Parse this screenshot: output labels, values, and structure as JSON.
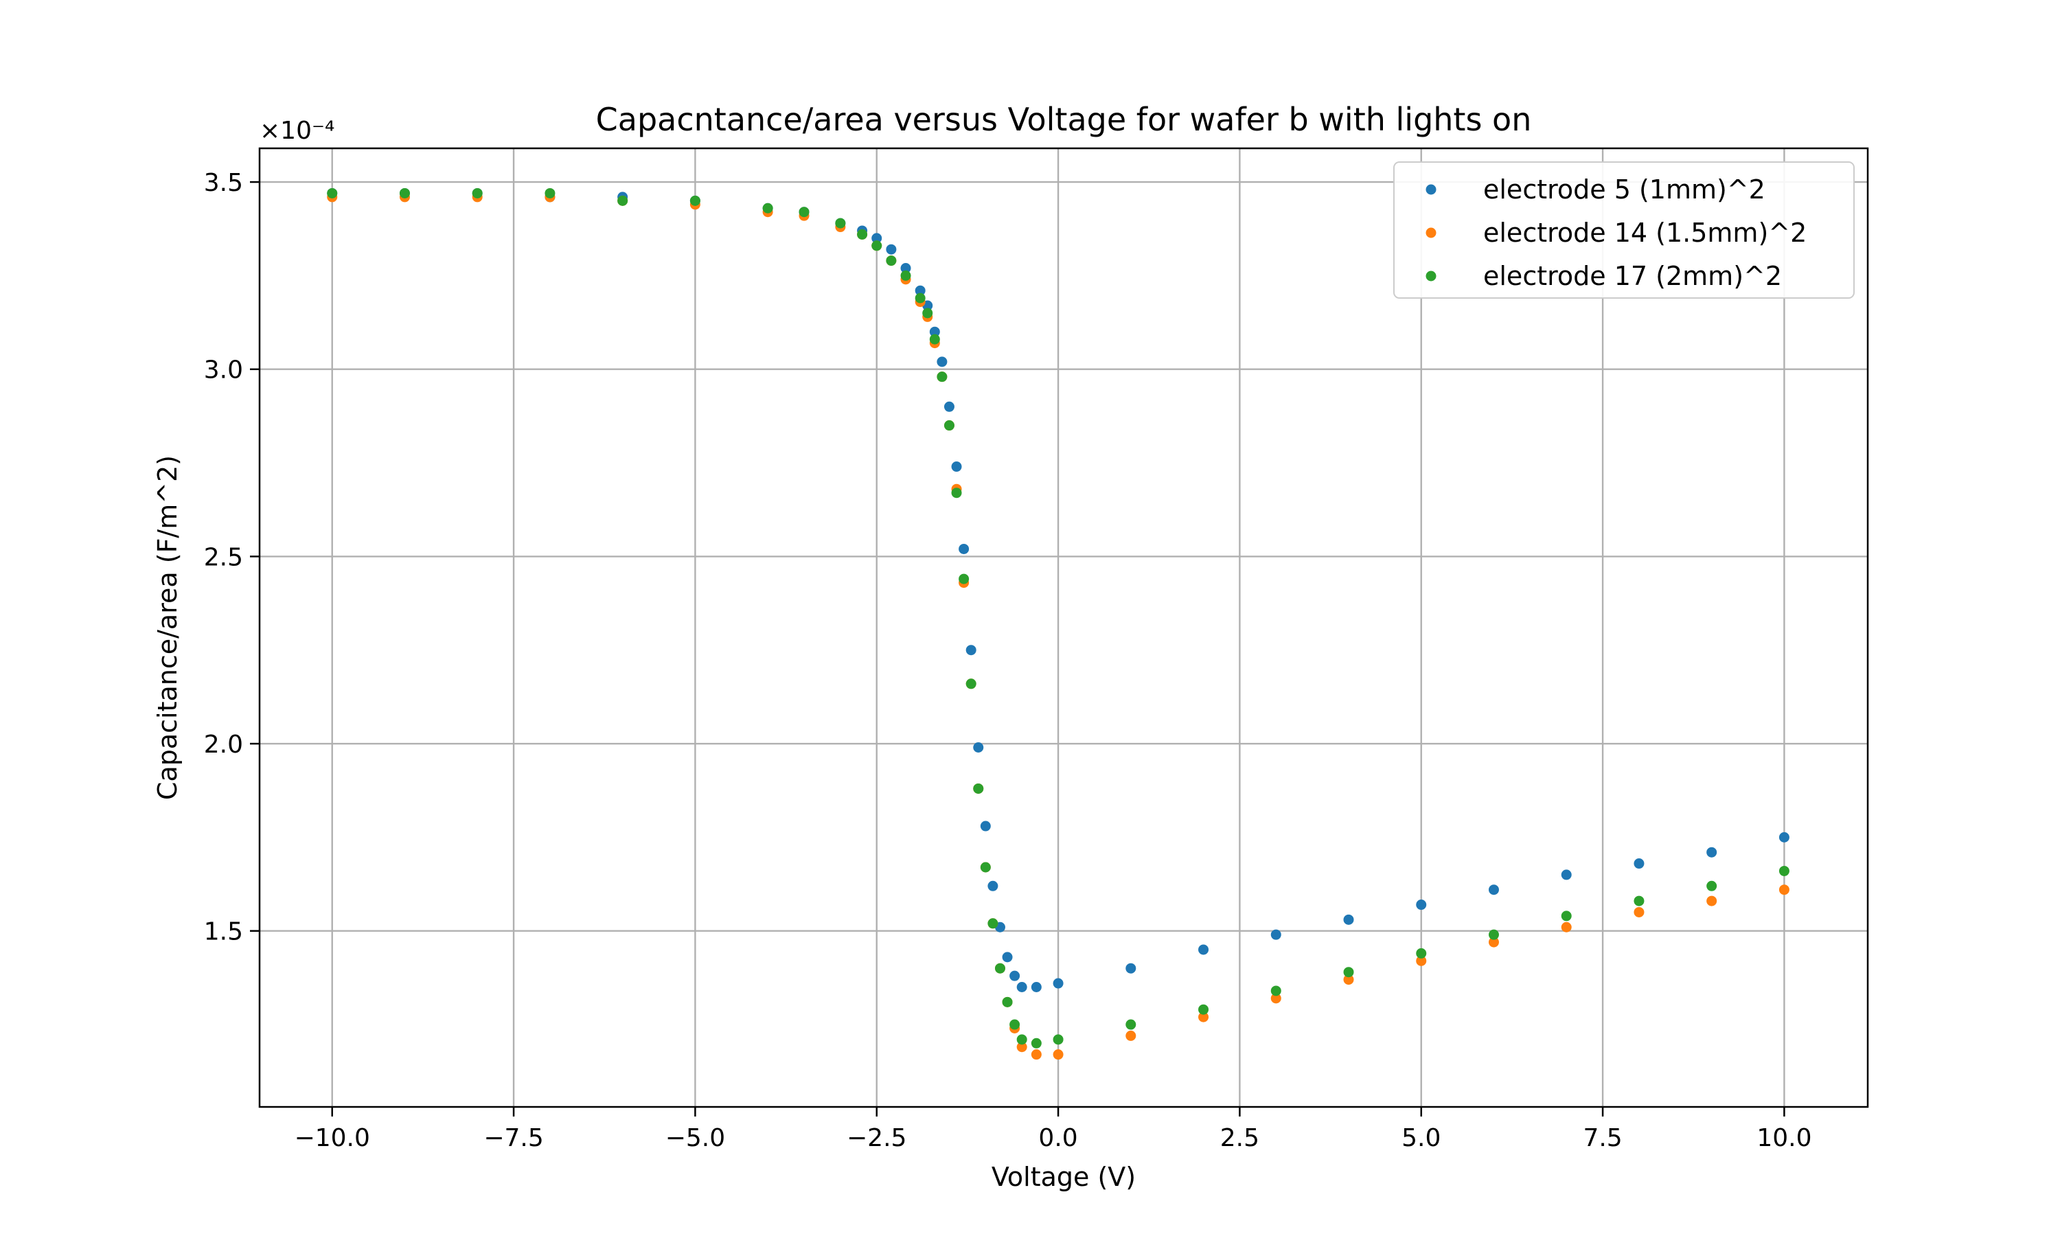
{
  "chart_data": {
    "type": "scatter",
    "title": "Capacntance/area versus Voltage for wafer b with lights on",
    "xlabel": "Voltage (V)",
    "ylabel": "Capacitance/area (F/m^2)",
    "offset_label": "×10⁻⁴",
    "xlim": [
      -11.0,
      11.15
    ],
    "ylim": [
      1.03,
      3.59
    ],
    "x_ticks": [
      -10.0,
      -7.5,
      -5.0,
      -2.5,
      0.0,
      2.5,
      5.0,
      7.5,
      10.0
    ],
    "x_tick_labels": [
      "−10.0",
      "−7.5",
      "−5.0",
      "−2.5",
      "0.0",
      "2.5",
      "5.0",
      "7.5",
      "10.0"
    ],
    "y_ticks": [
      1.5,
      2.0,
      2.5,
      3.0,
      3.5
    ],
    "y_tick_labels": [
      "1.5",
      "2.0",
      "2.5",
      "3.0",
      "3.5"
    ],
    "grid": true,
    "legend_position": "top-right",
    "series": [
      {
        "name": "electrode 5 (1mm)^2",
        "color": "#1f77b4",
        "x": [
          -10.0,
          -9.0,
          -8.0,
          -7.0,
          -6.0,
          -5.0,
          -4.0,
          -3.5,
          -3.0,
          -2.7,
          -2.5,
          -2.3,
          -2.1,
          -1.9,
          -1.8,
          -1.7,
          -1.6,
          -1.5,
          -1.4,
          -1.3,
          -1.2,
          -1.1,
          -1.0,
          -0.9,
          -0.8,
          -0.7,
          -0.6,
          -0.5,
          -0.3,
          0.0,
          1.0,
          2.0,
          3.0,
          4.0,
          5.0,
          6.0,
          7.0,
          8.0,
          9.0,
          10.0
        ],
        "y": [
          3.47,
          3.47,
          3.47,
          3.46,
          3.46,
          3.45,
          3.43,
          3.42,
          3.39,
          3.37,
          3.35,
          3.32,
          3.27,
          3.21,
          3.17,
          3.1,
          3.02,
          2.9,
          2.74,
          2.52,
          2.25,
          1.99,
          1.78,
          1.62,
          1.51,
          1.43,
          1.38,
          1.35,
          1.35,
          1.36,
          1.4,
          1.45,
          1.49,
          1.53,
          1.57,
          1.61,
          1.65,
          1.68,
          1.71,
          1.75
        ]
      },
      {
        "name": "electrode 14 (1.5mm)^2",
        "color": "#ff7f0e",
        "x": [
          -10.0,
          -9.0,
          -8.0,
          -7.0,
          -6.0,
          -5.0,
          -4.0,
          -3.5,
          -3.0,
          -2.7,
          -2.5,
          -2.3,
          -2.1,
          -1.9,
          -1.8,
          -1.7,
          -1.6,
          -1.5,
          -1.4,
          -1.3,
          -1.2,
          -1.1,
          -1.0,
          -0.9,
          -0.8,
          -0.7,
          -0.6,
          -0.5,
          -0.3,
          0.0,
          1.0,
          2.0,
          3.0,
          4.0,
          5.0,
          6.0,
          7.0,
          8.0,
          9.0,
          10.0
        ],
        "y": [
          3.46,
          3.46,
          3.46,
          3.46,
          3.45,
          3.44,
          3.42,
          3.41,
          3.38,
          3.36,
          3.33,
          3.29,
          3.24,
          3.18,
          3.14,
          3.07,
          2.98,
          2.85,
          2.68,
          2.43,
          2.16,
          1.88,
          1.67,
          1.52,
          1.4,
          1.31,
          1.24,
          1.19,
          1.17,
          1.17,
          1.22,
          1.27,
          1.32,
          1.37,
          1.42,
          1.47,
          1.51,
          1.55,
          1.58,
          1.61
        ]
      },
      {
        "name": "electrode 17 (2mm)^2",
        "color": "#2ca02c",
        "x": [
          -10.0,
          -9.0,
          -8.0,
          -7.0,
          -6.0,
          -5.0,
          -4.0,
          -3.5,
          -3.0,
          -2.7,
          -2.5,
          -2.3,
          -2.1,
          -1.9,
          -1.8,
          -1.7,
          -1.6,
          -1.5,
          -1.4,
          -1.3,
          -1.2,
          -1.1,
          -1.0,
          -0.9,
          -0.8,
          -0.7,
          -0.6,
          -0.5,
          -0.3,
          0.0,
          1.0,
          2.0,
          3.0,
          4.0,
          5.0,
          6.0,
          7.0,
          8.0,
          9.0,
          10.0
        ],
        "y": [
          3.47,
          3.47,
          3.47,
          3.47,
          3.45,
          3.45,
          3.43,
          3.42,
          3.39,
          3.36,
          3.33,
          3.29,
          3.25,
          3.19,
          3.15,
          3.08,
          2.98,
          2.85,
          2.67,
          2.44,
          2.16,
          1.88,
          1.67,
          1.52,
          1.4,
          1.31,
          1.25,
          1.21,
          1.2,
          1.21,
          1.25,
          1.29,
          1.34,
          1.39,
          1.44,
          1.49,
          1.54,
          1.58,
          1.62,
          1.66
        ]
      }
    ]
  }
}
